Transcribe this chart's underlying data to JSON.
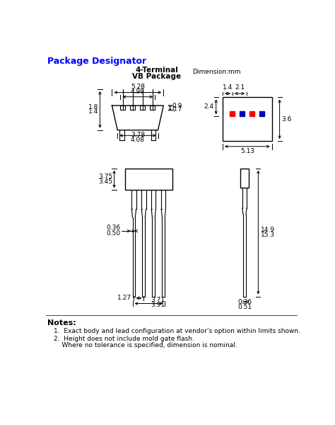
{
  "title": "Package Designator",
  "subtitle1": "4-Terminal",
  "subtitle2": "VB Package",
  "dim_label": "Dimension:mm",
  "notes_title": "Notes:",
  "note1": "1.  Exact body and lead configuration at vendor’s option within limits shown.",
  "note2a": "2.  Height does not include mold gate flash.",
  "note2b": "    Where no tolerance is specified, dimension is nominal.",
  "title_color": "#0000FF",
  "line_color": "#000000",
  "text_color": "#000000",
  "red_color": "#FF0000",
  "blue_color": "#0000BB"
}
